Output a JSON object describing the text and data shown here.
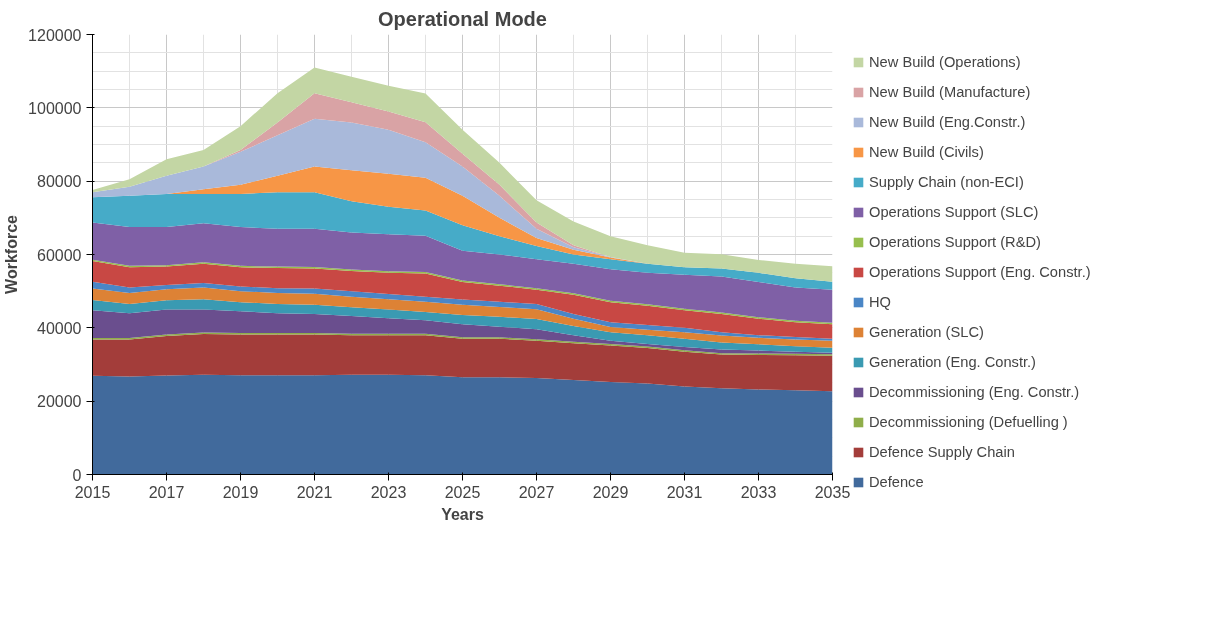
{
  "chart_data": {
    "type": "area",
    "stacked": true,
    "title": "Operational Mode",
    "xlabel": "Years",
    "ylabel": "Workforce",
    "x": [
      2015,
      2016,
      2017,
      2018,
      2019,
      2020,
      2021,
      2022,
      2023,
      2024,
      2025,
      2026,
      2027,
      2028,
      2029,
      2030,
      2031,
      2032,
      2033,
      2034,
      2035
    ],
    "xlim": [
      2015,
      2035
    ],
    "xticks": [
      2015,
      2017,
      2019,
      2021,
      2023,
      2025,
      2027,
      2029,
      2031,
      2033,
      2035
    ],
    "ylim": [
      0,
      120000
    ],
    "yticks": [
      0,
      20000,
      40000,
      60000,
      80000,
      100000,
      120000
    ],
    "grid": true,
    "legend": "right",
    "series": [
      {
        "name": "Defence",
        "color": "#416a9c",
        "values": [
          26900,
          26700,
          27000,
          27200,
          27100,
          27100,
          27100,
          27200,
          27200,
          27100,
          26500,
          26500,
          26300,
          25800,
          25200,
          24800,
          24000,
          23500,
          23200,
          23000,
          22700
        ]
      },
      {
        "name": "Defence Supply Chain",
        "color": "#a33d3a",
        "values": [
          9900,
          10100,
          10800,
          11100,
          11100,
          11100,
          11100,
          10800,
          10800,
          10900,
          10500,
          10500,
          10200,
          10000,
          10000,
          9700,
          9500,
          9200,
          9400,
          9500,
          9700
        ]
      },
      {
        "name": "Decommissioning (Defuelling )",
        "color": "#8fae4a",
        "values": [
          400,
          400,
          400,
          400,
          400,
          400,
          400,
          400,
          400,
          400,
          400,
          400,
          400,
          400,
          400,
          400,
          400,
          400,
          400,
          400,
          400
        ]
      },
      {
        "name": "Decommissioning (Eng. Constr.)",
        "color": "#6a4e8e",
        "values": [
          7600,
          6800,
          6800,
          6300,
          5900,
          5400,
          5200,
          4800,
          4200,
          3700,
          3600,
          2900,
          2700,
          1800,
          900,
          700,
          900,
          1000,
          800,
          600,
          400
        ]
      },
      {
        "name": "Generation (Eng. Constr.)",
        "color": "#3a9ab2",
        "values": [
          2800,
          2500,
          2500,
          2800,
          2500,
          2500,
          2500,
          2400,
          2400,
          2200,
          2500,
          2700,
          2800,
          2500,
          2300,
          2400,
          2200,
          1900,
          1700,
          1500,
          1400
        ]
      },
      {
        "name": "Generation (SLC)",
        "color": "#dd8235",
        "values": [
          3100,
          3000,
          3000,
          3200,
          3000,
          3000,
          3000,
          2900,
          2800,
          2800,
          2800,
          2700,
          2700,
          2000,
          1400,
          1500,
          1800,
          1900,
          1800,
          1800,
          1900
        ]
      },
      {
        "name": "HQ",
        "color": "#4a86c6",
        "values": [
          1900,
          1500,
          1200,
          1200,
          1300,
          1300,
          1400,
          1500,
          1400,
          1400,
          1400,
          1400,
          1400,
          1300,
          1300,
          1300,
          1200,
          900,
          700,
          700,
          500
        ]
      },
      {
        "name": "Operations Support (Eng. Constr.)",
        "color": "#c84844",
        "values": [
          5600,
          5500,
          5000,
          5300,
          5200,
          5500,
          5500,
          5500,
          5800,
          6300,
          4800,
          4400,
          3900,
          5200,
          5500,
          5200,
          4800,
          5000,
          4500,
          4000,
          4000
        ]
      },
      {
        "name": "Operations Support (R&D)",
        "color": "#97bf4e",
        "values": [
          400,
          400,
          400,
          400,
          400,
          400,
          400,
          400,
          400,
          400,
          400,
          400,
          400,
          400,
          400,
          400,
          400,
          400,
          400,
          400,
          400
        ]
      },
      {
        "name": "Operations Support (SLC)",
        "color": "#7f60a6",
        "values": [
          10100,
          10600,
          10400,
          10600,
          10600,
          10300,
          10400,
          10100,
          10100,
          9900,
          8100,
          8100,
          7900,
          8100,
          8600,
          8600,
          9300,
          9800,
          9600,
          9100,
          9000
        ]
      },
      {
        "name": "Supply Chain (non-ECI)",
        "color": "#46abc8",
        "values": [
          6900,
          8500,
          9000,
          8000,
          9000,
          10000,
          10000,
          8500,
          7500,
          6900,
          7000,
          5000,
          3600,
          2500,
          2700,
          2500,
          2000,
          2200,
          2500,
          2500,
          2200
        ]
      },
      {
        "name": "New Build (Civils)",
        "color": "#f79646",
        "values": [
          0,
          0,
          0,
          1300,
          2500,
          4500,
          7000,
          8500,
          9000,
          8900,
          8000,
          5000,
          2200,
          1300,
          500,
          0,
          0,
          0,
          0,
          0,
          0
        ]
      },
      {
        "name": "New Build (Eng.Constr.)",
        "color": "#a9b9da",
        "values": [
          1400,
          2500,
          5000,
          6200,
          9000,
          11000,
          13000,
          13000,
          12000,
          9700,
          8000,
          6000,
          2500,
          700,
          100,
          0,
          0,
          0,
          0,
          0,
          0
        ]
      },
      {
        "name": "New Build (Manufacture)",
        "color": "#d9a3a5",
        "values": [
          0,
          0,
          0,
          0,
          500,
          3500,
          7000,
          5500,
          5000,
          5500,
          3500,
          3000,
          1700,
          500,
          0,
          0,
          0,
          0,
          0,
          0,
          0
        ]
      },
      {
        "name": "New Build (Operations)",
        "color": "#c3d6a4",
        "values": [
          600,
          2000,
          4500,
          4500,
          6500,
          8000,
          7000,
          7000,
          7000,
          7800,
          6500,
          6000,
          6100,
          6500,
          5700,
          5000,
          4000,
          3900,
          3500,
          4000,
          4200
        ]
      }
    ]
  }
}
